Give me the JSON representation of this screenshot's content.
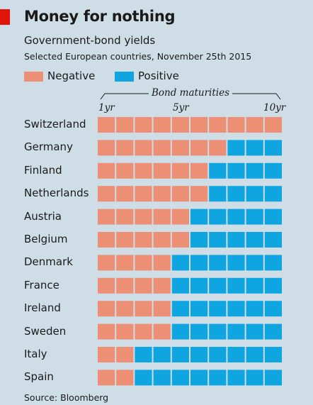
{
  "title": "Money for nothing",
  "subtitle": "Government-bond yields",
  "subtitle2": "Selected European countries, November 25th 2015",
  "source": "Source: Bloomberg",
  "colors": {
    "negative": "#ec8f74",
    "positive": "#0ea5e1",
    "background": "#cfdde6",
    "accent": "#e3120b"
  },
  "chart_data": {
    "type": "heatmap",
    "title": "Money for nothing",
    "subtitle": "Government-bond yields",
    "xlabel": "Bond maturities",
    "tick_labels": [
      "1yr",
      "5yr",
      "10yr"
    ],
    "maturities": [
      "1yr",
      "2yr",
      "3yr",
      "4yr",
      "5yr",
      "6yr",
      "7yr",
      "8yr",
      "9yr",
      "10yr"
    ],
    "legend": [
      "Negative",
      "Positive"
    ],
    "legend_position": "top-left",
    "countries": [
      "Switzerland",
      "Germany",
      "Finland",
      "Netherlands",
      "Austria",
      "Belgium",
      "Denmark",
      "France",
      "Ireland",
      "Sweden",
      "Italy",
      "Spain"
    ],
    "negative_maturities_count": [
      10,
      7,
      6,
      6,
      5,
      5,
      4,
      4,
      4,
      4,
      2,
      2
    ]
  }
}
